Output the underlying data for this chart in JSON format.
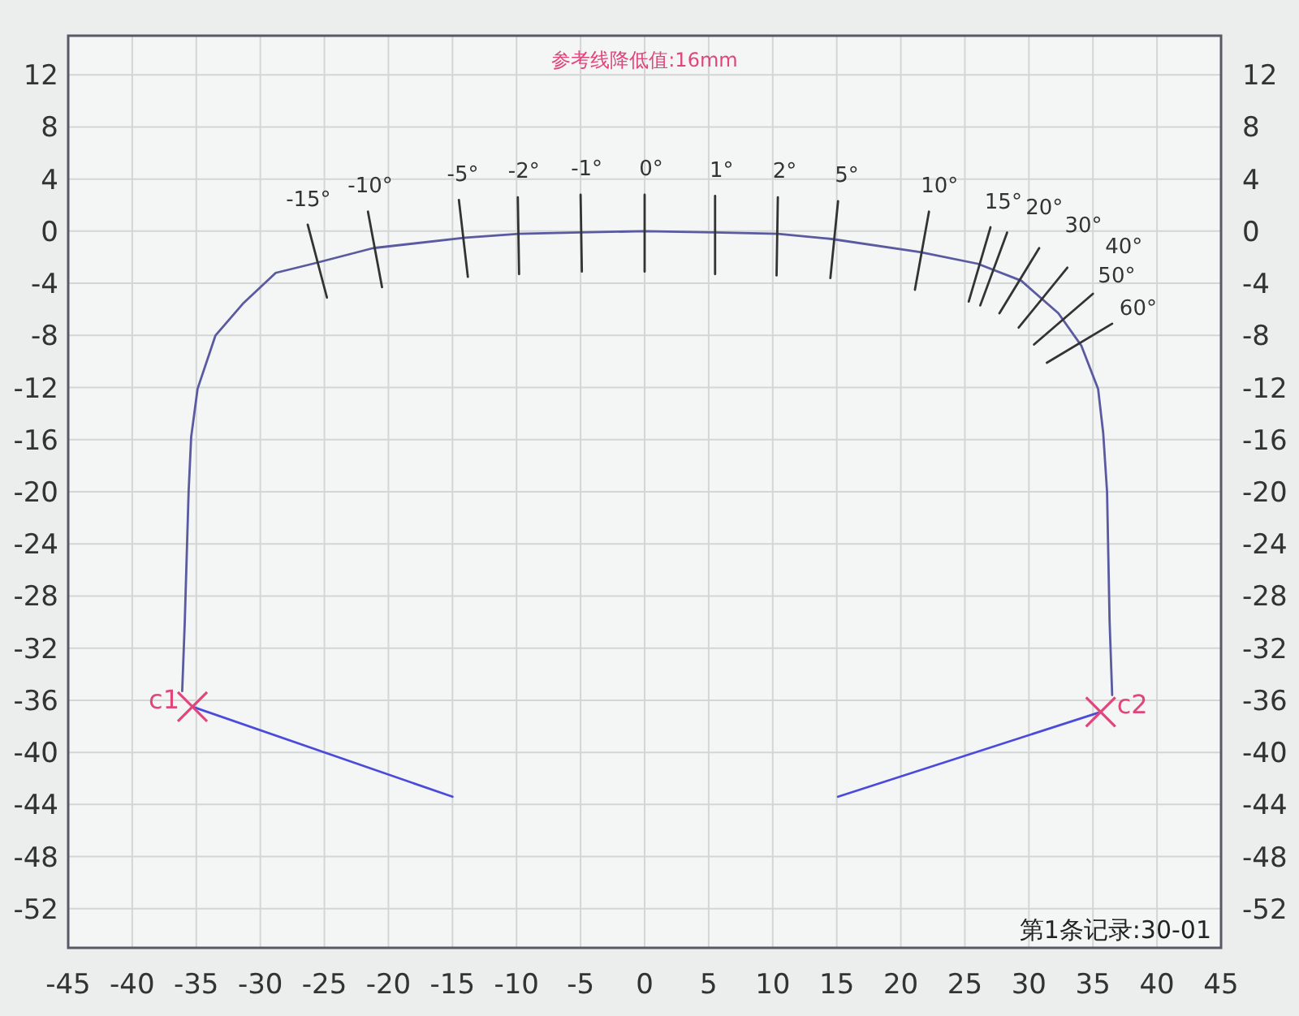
{
  "chart_data": {
    "type": "line",
    "xlim": [
      -45,
      45
    ],
    "ylim": [
      -55,
      15
    ],
    "y2lim": [
      -55,
      15
    ],
    "xticks": [
      -45,
      -40,
      -35,
      -30,
      -25,
      -20,
      -15,
      -10,
      -5,
      0,
      5,
      10,
      15,
      20,
      25,
      30,
      35,
      40,
      45
    ],
    "yticks": [
      12,
      8,
      4,
      0,
      -4,
      -8,
      -12,
      -16,
      -20,
      -24,
      -28,
      -32,
      -36,
      -40,
      -44,
      -48,
      -52
    ],
    "y2ticks": [
      12,
      8,
      4,
      0,
      -4,
      -8,
      -12,
      -16,
      -20,
      -24,
      -28,
      -32,
      -36,
      -40,
      -44,
      -48,
      -52
    ],
    "grid": true,
    "series": [
      {
        "color": "#5a5aa0",
        "x": [
          -36.1,
          -35.9,
          -35.6,
          -35.4,
          -34.9,
          -33.5,
          -31.3,
          -28.8,
          -25.9,
          -21.2,
          -14,
          -9.8,
          -5,
          0,
          5.4,
          10.4,
          14.6,
          21.5,
          26,
          29.4,
          32.3,
          34.1,
          35.4,
          35.8,
          36.1,
          36.3,
          36.5
        ],
        "values": [
          -35.3,
          -30,
          -20,
          -15.8,
          -12.1,
          -8.0,
          -5.5,
          -3.2,
          -2.5,
          -1.3,
          -0.5,
          -0.2,
          -0.1,
          0,
          -0.1,
          -0.2,
          -0.6,
          -1.6,
          -2.5,
          -3.8,
          -6.3,
          -8.8,
          -12.1,
          -15.5,
          -20,
          -30,
          -35.6
        ]
      },
      {
        "color": "#4b4bdb",
        "x": [
          -35.3,
          -15.0
        ],
        "values": [
          -36.5,
          -43.4
        ]
      },
      {
        "color": "#4b4bdb",
        "x": [
          35.6,
          15.1
        ],
        "values": [
          -36.9,
          -43.4
        ]
      },
      {
        "type": "scatter",
        "marker": "cross",
        "color": "#e0457b",
        "x": [
          -35.3,
          35.6
        ],
        "values": [
          -36.5,
          -36.9
        ]
      },
      {
        "color": "#333333",
        "x": [
          -26.3,
          -24.8
        ],
        "values": [
          0.5,
          -5.1
        ]
      },
      {
        "color": "#333333",
        "x": [
          -21.6,
          -20.5
        ],
        "values": [
          1.5,
          -4.3
        ]
      },
      {
        "color": "#333333",
        "x": [
          -14.5,
          -13.8
        ],
        "values": [
          2.4,
          -3.5
        ]
      },
      {
        "color": "#333333",
        "x": [
          -9.9,
          -9.8
        ],
        "values": [
          2.6,
          -3.3
        ]
      },
      {
        "color": "#333333",
        "x": [
          -5.0,
          -4.9
        ],
        "values": [
          2.8,
          -3.1
        ]
      },
      {
        "color": "#333333",
        "x": [
          0,
          0
        ],
        "values": [
          2.8,
          -3.1
        ]
      },
      {
        "color": "#333333",
        "x": [
          5.5,
          5.5
        ],
        "values": [
          2.7,
          -3.3
        ]
      },
      {
        "color": "#333333",
        "x": [
          10.4,
          10.3
        ],
        "values": [
          2.6,
          -3.4
        ]
      },
      {
        "color": "#333333",
        "x": [
          15.1,
          14.5
        ],
        "values": [
          2.3,
          -3.6
        ]
      },
      {
        "color": "#333333",
        "x": [
          22.2,
          21.1
        ],
        "values": [
          1.5,
          -4.5
        ]
      },
      {
        "color": "#333333",
        "x": [
          27.0,
          25.3
        ],
        "values": [
          0.3,
          -5.4
        ]
      },
      {
        "color": "#333333",
        "x": [
          28.3,
          26.2
        ],
        "values": [
          -0.1,
          -5.7
        ]
      },
      {
        "color": "#333333",
        "x": [
          30.8,
          27.7
        ],
        "values": [
          -1.3,
          -6.3
        ]
      },
      {
        "color": "#333333",
        "x": [
          33.0,
          29.2
        ],
        "values": [
          -2.8,
          -7.4
        ]
      },
      {
        "color": "#333333",
        "x": [
          35.0,
          30.4
        ],
        "values": [
          -4.8,
          -8.7
        ]
      },
      {
        "color": "#333333",
        "x": [
          36.5,
          31.4
        ],
        "values": [
          -7.1,
          -10.1
        ]
      }
    ],
    "annotations": [
      "参考线降低值:16mm",
      "第1条记录:30-01",
      {
        "text": "c1",
        "x": -35.3,
        "y": -36.5
      },
      {
        "text": "c2",
        "x": 35.6,
        "y": -36.9
      },
      {
        "text": "-15°",
        "x": -26.3,
        "y": 0.5
      },
      {
        "text": "-10°",
        "x": -21.6,
        "y": 1.5
      },
      {
        "text": "-5°",
        "x": -14.5,
        "y": 2.4
      },
      {
        "text": "-2°",
        "x": -9.9,
        "y": 2.6
      },
      {
        "text": "-1°",
        "x": -5.0,
        "y": 2.8
      },
      {
        "text": "0°",
        "x": 0,
        "y": 2.8
      },
      {
        "text": "1°",
        "x": 5.5,
        "y": 2.7
      },
      {
        "text": "2°",
        "x": 10.4,
        "y": 2.6
      },
      {
        "text": "5°",
        "x": 15.1,
        "y": 2.3
      },
      {
        "text": "10°",
        "x": 22.2,
        "y": 1.5
      },
      {
        "text": "15°",
        "x": 27.0,
        "y": 0.3
      },
      {
        "text": "20°",
        "x": 28.3,
        "y": -0.1
      },
      {
        "text": "30°",
        "x": 30.8,
        "y": -1.3
      },
      {
        "text": "40°",
        "x": 33.0,
        "y": -2.8
      },
      {
        "text": "50°",
        "x": 35.0,
        "y": -4.8
      },
      {
        "text": "60°",
        "x": 36.5,
        "y": -7.1
      }
    ]
  }
}
